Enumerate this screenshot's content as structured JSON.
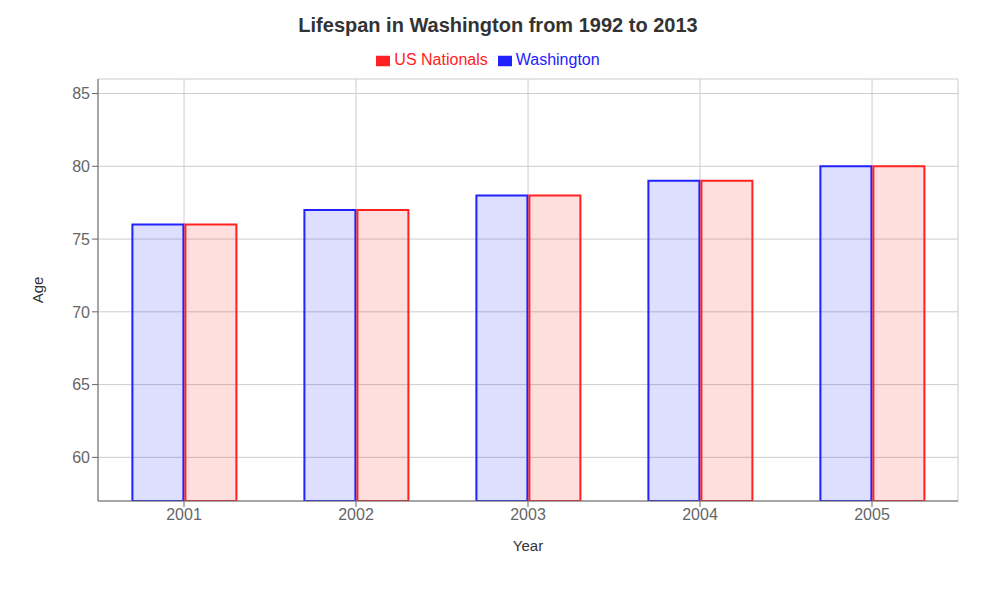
{
  "chart_data": {
    "type": "bar",
    "title": "Lifespan in Washington from 1992 to 2013",
    "xlabel": "Year",
    "ylabel": "Age",
    "categories": [
      "2001",
      "2002",
      "2003",
      "2004",
      "2005"
    ],
    "series": [
      {
        "name": "Washington",
        "color": "#2222ff",
        "values": [
          76,
          77,
          78,
          79,
          80
        ]
      },
      {
        "name": "US Nationals",
        "color": "#ff2222",
        "values": [
          76,
          77,
          78,
          79,
          80
        ]
      }
    ],
    "ylim": [
      57,
      86
    ],
    "yticks": [
      60,
      65,
      70,
      75,
      80,
      85
    ],
    "grid": true,
    "legend": "top"
  }
}
